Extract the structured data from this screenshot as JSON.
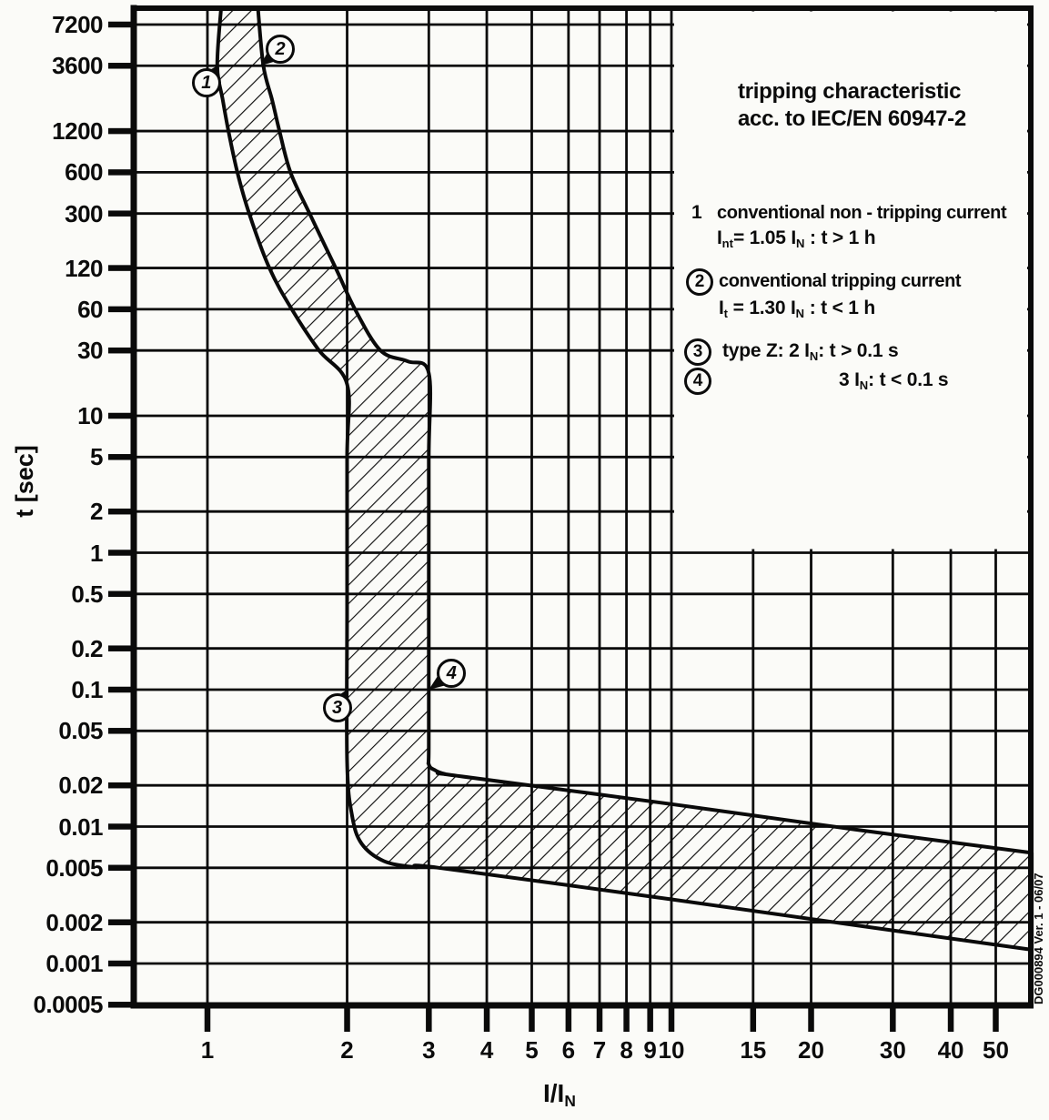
{
  "page": {
    "ink_color": "#0a0a0a",
    "background": "#fbfbf8"
  },
  "side_note": "DG000894 Ver. 1 - 06/07",
  "legend": {
    "title_line1": "tripping characteristic",
    "title_line2": "acc. to IEC/EN 60947-2",
    "items": [
      {
        "num": "1",
        "circled": false,
        "line1": "conventional non - tripping current",
        "line2": [
          "I",
          {
            "sub": "nt"
          },
          "= 1.05 I",
          {
            "sub": "N"
          },
          " : t > 1 h"
        ]
      },
      {
        "num": "2",
        "circled": true,
        "line1": "conventional tripping current",
        "line2": [
          "I",
          {
            "sub": "t"
          },
          " = 1.30 I",
          {
            "sub": "N"
          },
          " : t < 1 h"
        ]
      },
      {
        "num": "3",
        "circled": true,
        "line1": [
          "type Z:  2 I",
          {
            "sub": "N"
          },
          ": t > 0.1 s"
        ]
      },
      {
        "num": "4",
        "circled": true,
        "line1": [
          "3 I",
          {
            "sub": "N"
          },
          ": t < 0.1 s"
        ]
      }
    ]
  },
  "chart_data": {
    "type": "area",
    "title": "tripping characteristic acc. to IEC/EN 60947-2",
    "description": "Trip-time band (hatched tolerance envelope) of a type Z miniature circuit breaker per IEC/EN 60947-2, log-log axes",
    "grid": true,
    "x_axis": {
      "label_segments": [
        "I/I",
        {
          "sub": "N"
        }
      ],
      "scale": "log",
      "ticks": [
        "1",
        "2",
        "3",
        "4",
        "5",
        "6",
        "7",
        "8",
        "9",
        "10",
        "15",
        "20",
        "30",
        "40",
        "50"
      ],
      "range": [
        0.69,
        59.8
      ]
    },
    "y_axis": {
      "label": "t [sec]",
      "scale": "log",
      "ticks": [
        "7200",
        "3600",
        "1200",
        "600",
        "300",
        "120",
        "60",
        "30",
        "10",
        "5",
        "2",
        "1",
        "0.5",
        "0.2",
        "0.1",
        "0.05",
        "0.02",
        "0.01",
        "0.005",
        "0.002",
        "0.001",
        "0.0005"
      ],
      "range": [
        0.0005,
        9500
      ]
    },
    "band": {
      "name": "type-Z tripping tolerance band",
      "min_boundary": [
        [
          1.07,
          9500
        ],
        [
          1.05,
          3600
        ],
        [
          1.08,
          2000
        ],
        [
          1.11,
          1200
        ],
        [
          1.16,
          600
        ],
        [
          1.23,
          300
        ],
        [
          1.36,
          120
        ],
        [
          1.52,
          60
        ],
        [
          1.74,
          30
        ],
        [
          2.0,
          17
        ],
        [
          2.0,
          5
        ],
        [
          2.0,
          0.4
        ],
        [
          2.0,
          0.03
        ],
        [
          2.05,
          0.012
        ],
        [
          2.15,
          0.0075
        ],
        [
          2.4,
          0.0056
        ],
        [
          2.8,
          0.00505
        ],
        [
          3.15,
          0.005
        ],
        [
          10,
          0.00294
        ],
        [
          25,
          0.0019
        ],
        [
          59.8,
          0.00126
        ]
      ],
      "max_boundary": [
        [
          1.285,
          9500
        ],
        [
          1.32,
          3600
        ],
        [
          1.38,
          2000
        ],
        [
          1.43,
          1200
        ],
        [
          1.51,
          600
        ],
        [
          1.66,
          300
        ],
        [
          1.89,
          120
        ],
        [
          2.08,
          60
        ],
        [
          2.36,
          30
        ],
        [
          2.7,
          25
        ],
        [
          3.0,
          20.5
        ],
        [
          3.0,
          5
        ],
        [
          3.0,
          0.5
        ],
        [
          3.0,
          0.04
        ],
        [
          3.0,
          0.0285
        ],
        [
          3.1,
          0.0257
        ],
        [
          3.25,
          0.0242
        ],
        [
          3.45,
          0.0235
        ],
        [
          10,
          0.0146
        ],
        [
          25,
          0.0095
        ],
        [
          59.8,
          0.00643
        ]
      ]
    },
    "key_points": [
      {
        "label": "1",
        "meaning": "conventional non-tripping current 1.05 IN, t > 1 h",
        "I": 1.05,
        "t": 3600
      },
      {
        "label": "2",
        "meaning": "conventional tripping current 1.30 IN, t < 1 h",
        "I": 1.3,
        "t": 3600
      },
      {
        "label": "3",
        "meaning": "type Z: 2 IN, t > 0.1 s",
        "I": 2,
        "t": 0.1
      },
      {
        "label": "4",
        "meaning": "type Z: 3 IN, t < 0.1 s",
        "I": 3,
        "t": 0.1
      }
    ]
  }
}
